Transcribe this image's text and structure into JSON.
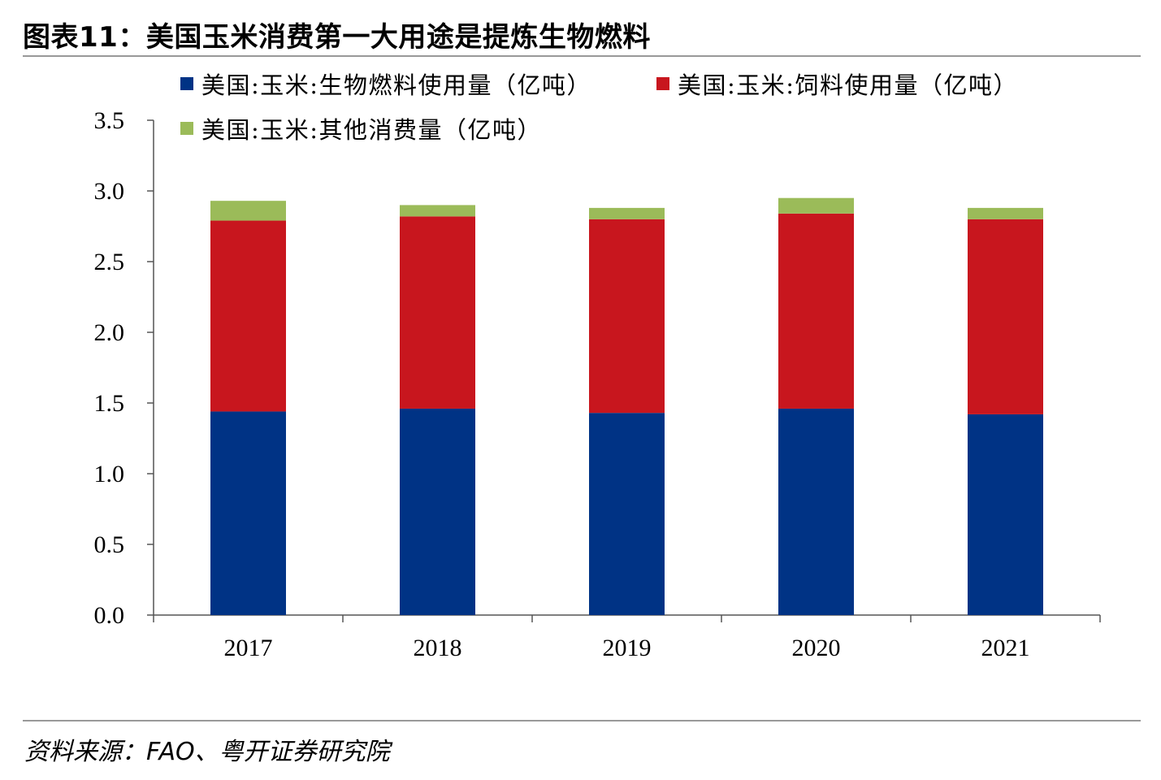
{
  "title": "图表11：美国玉米消费第一大用途是提炼生物燃料",
  "source": "资料来源：FAO、粤开证券研究院",
  "chart_data": {
    "type": "bar",
    "stacked": true,
    "title": "图表11：美国玉米消费第一大用途是提炼生物燃料",
    "categories": [
      "2017",
      "2018",
      "2019",
      "2020",
      "2021"
    ],
    "ylim": [
      0,
      3.5
    ],
    "yticks": [
      "0.0",
      "0.5",
      "1.0",
      "1.5",
      "2.0",
      "2.5",
      "3.0",
      "3.5"
    ],
    "legend_position": "top",
    "grid": false,
    "series": [
      {
        "name": "美国:玉米:生物燃料使用量（亿吨）",
        "color": "#003385",
        "values": [
          1.44,
          1.46,
          1.43,
          1.46,
          1.42
        ]
      },
      {
        "name": "美国:玉米:饲料使用量（亿吨）",
        "color": "#C8161E",
        "values": [
          1.35,
          1.36,
          1.37,
          1.38,
          1.38
        ]
      },
      {
        "name": "美国:玉米:其他消费量（亿吨）",
        "color": "#9BBB59",
        "values": [
          0.14,
          0.08,
          0.08,
          0.11,
          0.08
        ]
      }
    ]
  }
}
